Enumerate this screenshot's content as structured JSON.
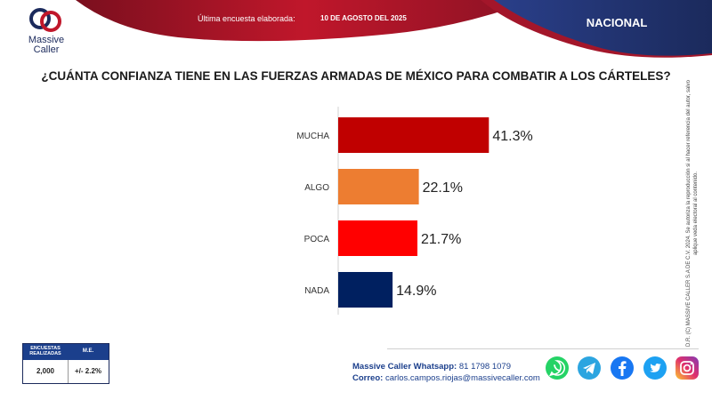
{
  "header": {
    "brand": "Massive Caller",
    "survey_label": "Última encuesta elaborada:",
    "survey_date": "10 DE AGOSTO DEL 2025",
    "scope": "NACIONAL"
  },
  "question": "¿CUÁNTA CONFIANZA TIENE EN LAS FUERZAS ARMADAS DE MÉXICO PARA COMBATIR A LOS CÁRTELES?",
  "chart_data": {
    "type": "bar",
    "orientation": "horizontal",
    "title": "¿CUÁNTA CONFIANZA TIENE EN LAS FUERZAS ARMADAS DE MÉXICO PARA COMBATIR A LOS CÁRTELES?",
    "categories": [
      "MUCHA",
      "ALGO",
      "POCA",
      "NADA"
    ],
    "values": [
      41.3,
      22.1,
      21.7,
      14.9
    ],
    "labels": [
      "41.3%",
      "22.1%",
      "21.7%",
      "14.9%"
    ],
    "colors": [
      "#c00000",
      "#ed7d31",
      "#ff0000",
      "#002060"
    ],
    "xlim": [
      0,
      100
    ],
    "xlabel": "",
    "ylabel": ""
  },
  "side_note": "D.R. (C) MASSIVE CALLER S.A DE C.V. 2024. Se autoriza la reproducción si al hacer referencia del autor, salvo aplique veda electoral al contenido.",
  "stats": {
    "surveys_label": "ENCUESTAS REALIZADAS",
    "surveys_value": "2,000",
    "me_label": "M.E.",
    "me_value": "+/- 2.2%"
  },
  "contact": {
    "whatsapp_label": "Massive Caller Whatsapp:",
    "whatsapp_value": "81 1798 1079",
    "email_label": "Correo:",
    "email_value": "carlos.campos.riojas@massivecaller.com"
  },
  "socials": [
    {
      "icon": "whatsapp-icon",
      "color": "#25d366"
    },
    {
      "icon": "telegram-icon",
      "color": "#2ca5e0"
    },
    {
      "icon": "facebook-icon",
      "color": "#1877f2"
    },
    {
      "icon": "twitter-icon",
      "color": "#1da1f2"
    },
    {
      "icon": "instagram-icon",
      "color": "#c13584"
    }
  ]
}
